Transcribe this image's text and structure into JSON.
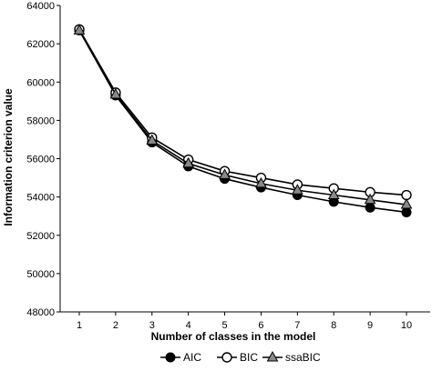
{
  "chart_data": {
    "type": "line",
    "title": "",
    "xlabel": "Number of classes in the model",
    "ylabel": "Information criterion value",
    "x": [
      1,
      2,
      3,
      4,
      5,
      6,
      7,
      8,
      9,
      10
    ],
    "ylim": [
      48000,
      64000
    ],
    "yticks": [
      48000,
      50000,
      52000,
      54000,
      56000,
      58000,
      60000,
      62000,
      64000
    ],
    "grid": false,
    "legend_position": "bottom",
    "series": [
      {
        "name": "AIC",
        "marker": "filled-circle",
        "color": "#000000",
        "values": [
          62700,
          59300,
          56850,
          55600,
          54950,
          54500,
          54100,
          53750,
          53450,
          53200
        ]
      },
      {
        "name": "BIC",
        "marker": "open-circle",
        "color": "#000000",
        "values": [
          62750,
          59450,
          57100,
          55950,
          55350,
          55000,
          54650,
          54450,
          54250,
          54100
        ]
      },
      {
        "name": "ssaBIC",
        "marker": "filled-triangle",
        "color": "#000000",
        "values": [
          62700,
          59350,
          56950,
          55750,
          55150,
          54700,
          54350,
          54100,
          53850,
          53600
        ]
      }
    ]
  }
}
